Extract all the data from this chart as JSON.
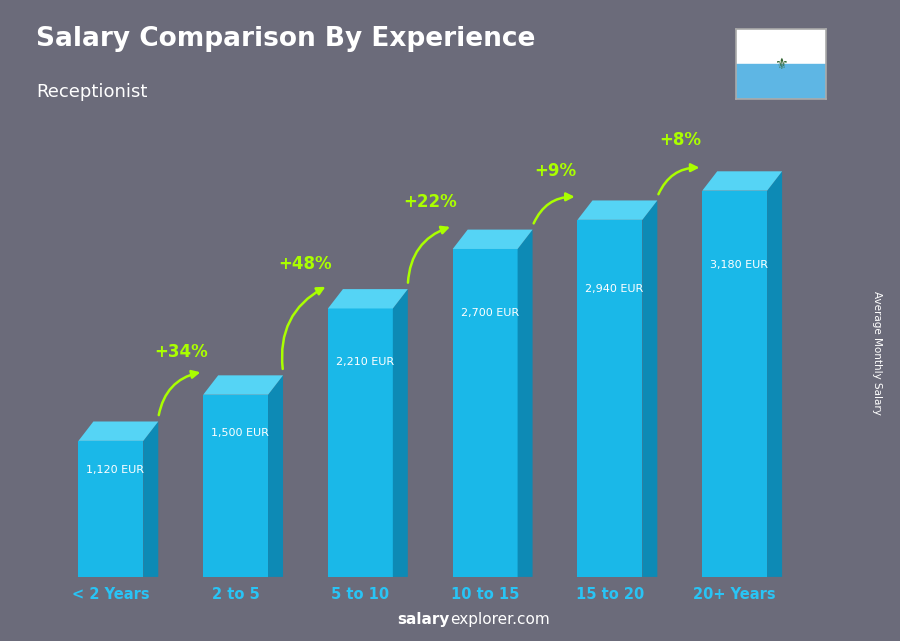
{
  "title": "Salary Comparison By Experience",
  "subtitle": "Receptionist",
  "ylabel": "Average Monthly Salary",
  "watermark_bold": "salary",
  "watermark_regular": "explorer.com",
  "categories": [
    "< 2 Years",
    "2 to 5",
    "5 to 10",
    "10 to 15",
    "15 to 20",
    "20+ Years"
  ],
  "values": [
    1120,
    1500,
    2210,
    2700,
    2940,
    3180
  ],
  "labels": [
    "1,120 EUR",
    "1,500 EUR",
    "2,210 EUR",
    "2,700 EUR",
    "2,940 EUR",
    "3,180 EUR"
  ],
  "pct_labels": [
    "+34%",
    "+48%",
    "+22%",
    "+9%",
    "+8%"
  ],
  "bar_color_front": "#1ab8e8",
  "bar_color_top": "#55d4f5",
  "bar_color_side": "#0d8ab5",
  "background_color": "#6b6b7a",
  "title_color": "#ffffff",
  "subtitle_color": "#ffffff",
  "label_color": "#ffffff",
  "pct_color": "#aaff00",
  "cat_color": "#29c4f5",
  "ylim": [
    0,
    3800
  ],
  "flag_white": "#ffffff",
  "flag_blue": "#5EB6E4"
}
